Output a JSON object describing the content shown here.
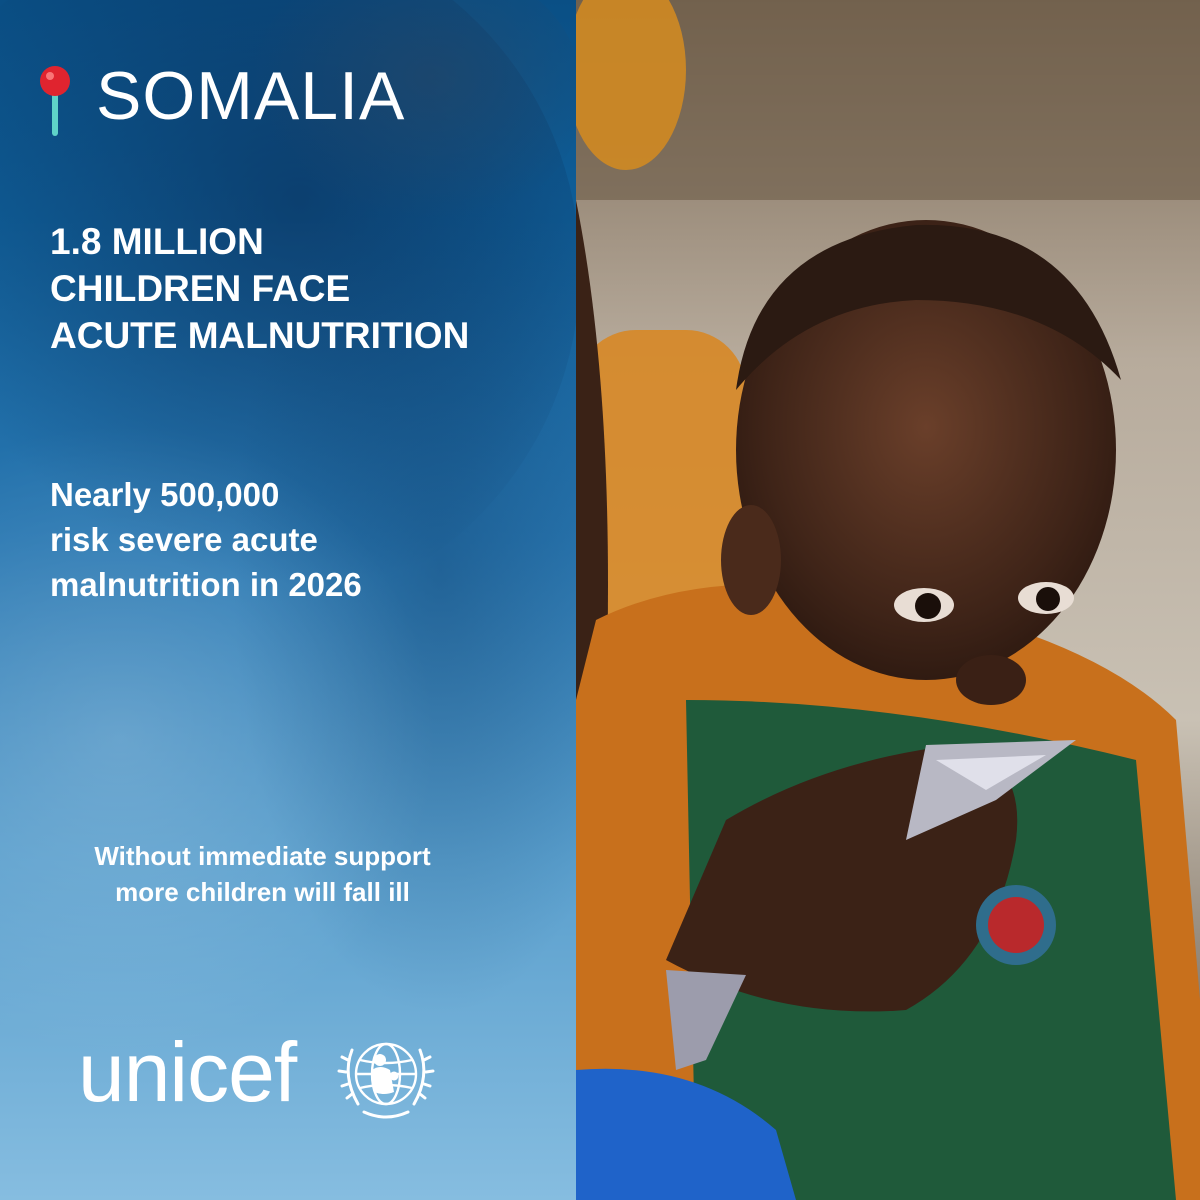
{
  "location": {
    "icon": "map-pin-icon",
    "label": "SOMALIA"
  },
  "headline": {
    "lines": [
      "1.8 MILLION",
      "CHILDREN FACE",
      "ACUTE MALNUTRITION"
    ]
  },
  "subline": {
    "lines": [
      "Nearly 500,000",
      "risk severe acute",
      "malnutrition in 2026"
    ]
  },
  "callout": {
    "lines": [
      "Without immediate support",
      "more children will fall ill"
    ]
  },
  "brand": {
    "wordmark": "unicef",
    "emblem": "unicef-emblem-icon"
  },
  "colors": {
    "panel_top": "#0a4f85",
    "panel_bottom": "#86bde0",
    "pin_red": "#e0242f",
    "pin_stem": "#5fd3c8",
    "text": "#ffffff"
  },
  "photo": {
    "icon": "child-feeding-photo"
  }
}
